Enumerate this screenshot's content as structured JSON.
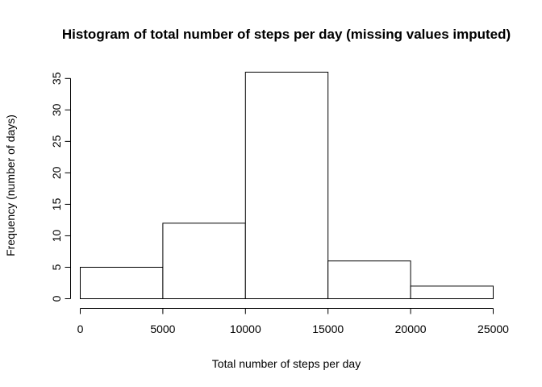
{
  "chart_data": {
    "type": "bar",
    "title": "Histogram of total number of steps per day (missing values imputed)",
    "xlabel": "Total number of steps per day",
    "ylabel": "Frequency (number of days)",
    "bins": [
      {
        "from": 0,
        "to": 5000,
        "count": 5
      },
      {
        "from": 5000,
        "to": 10000,
        "count": 12
      },
      {
        "from": 10000,
        "to": 15000,
        "count": 36
      },
      {
        "from": 15000,
        "to": 20000,
        "count": 6
      },
      {
        "from": 20000,
        "to": 25000,
        "count": 2
      }
    ],
    "xticks": [
      0,
      5000,
      10000,
      15000,
      20000,
      25000
    ],
    "yticks": [
      0,
      5,
      10,
      15,
      20,
      25,
      30,
      35
    ],
    "xlim": [
      0,
      25000
    ],
    "ylim": [
      0,
      36
    ],
    "grid": false,
    "legend": "none",
    "bar_fill": "#ffffff",
    "bar_stroke": "#000000"
  }
}
